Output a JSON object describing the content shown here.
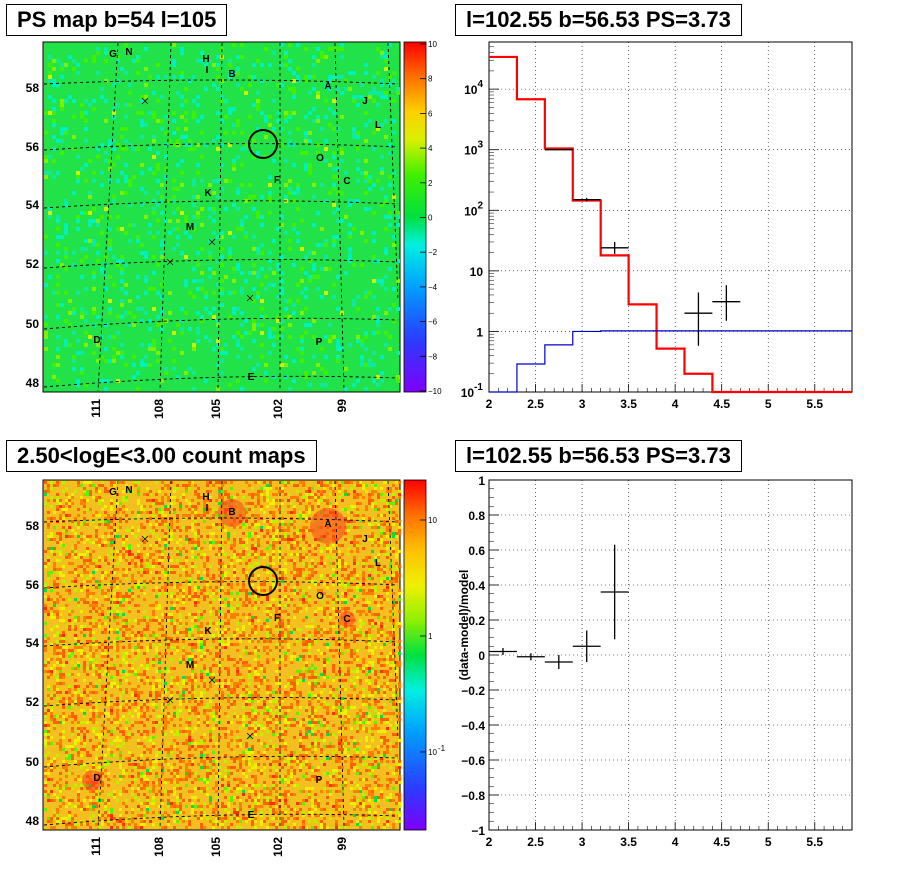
{
  "panels": {
    "ps_map_title": "PS map b=54 l=105",
    "spectrum_title": "l=102.55 b=56.53 PS=3.73",
    "count_map_title": "2.50<logE<3.00 count maps",
    "residual_title": "l=102.55 b=56.53 PS=3.73"
  },
  "maps": {
    "lat_ticks": [
      "58",
      "56",
      "54",
      "52",
      "50",
      "48"
    ],
    "lon_ticks": [
      "111",
      "108",
      "105",
      "102",
      "99"
    ],
    "source_labels": [
      "G",
      "N",
      "H",
      "I",
      "B",
      "A",
      "J",
      "L",
      "O",
      "C",
      "F",
      "K",
      "M",
      "D",
      "P",
      "E"
    ],
    "ps_colorbar_ticks": [
      "10",
      "8",
      "6",
      "4",
      "2",
      "0",
      "−2",
      "−4",
      "−6",
      "−8",
      "−10"
    ],
    "count_colorbar_ticks": [
      "10",
      "1",
      "10",
      "-1"
    ]
  },
  "chart_data": [
    {
      "type": "step",
      "title": "l=102.55 b=56.53 PS=3.73",
      "xlabel": "",
      "ylabel": "",
      "xlim": [
        2,
        5.9
      ],
      "ylim": [
        0.1,
        60000
      ],
      "yscale": "log",
      "x_ticks": [
        "2",
        "2.5",
        "3",
        "3.5",
        "4",
        "4.5",
        "5",
        "5.5"
      ],
      "y_ticks": [
        "10^4",
        "10^3",
        "10^2",
        "10",
        "1",
        "10^-1"
      ],
      "grid": true,
      "series": [
        {
          "color": "#ff0000",
          "bin_edges": [
            2.0,
            2.3,
            2.6,
            2.9,
            3.2,
            3.5,
            3.8,
            4.1,
            4.4,
            5.9
          ],
          "values": [
            34000,
            6800,
            1050,
            145,
            18,
            2.8,
            0.52,
            0.2,
            0.1
          ]
        },
        {
          "color": "#0000cc",
          "bin_edges": [
            2.0,
            2.3,
            2.6,
            2.9,
            3.2,
            5.9
          ],
          "values": [
            0.1,
            0.29,
            0.6,
            1.0,
            1.02
          ]
        }
      ],
      "points": [
        {
          "x": 2.75,
          "y": 1000,
          "xerr": 0.15,
          "ylo": 980,
          "yhi": 1020
        },
        {
          "x": 3.05,
          "y": 150,
          "xerr": 0.15,
          "ylo": 140,
          "yhi": 160
        },
        {
          "x": 3.35,
          "y": 24,
          "xerr": 0.15,
          "ylo": 19,
          "yhi": 30
        },
        {
          "x": 4.25,
          "y": 2.0,
          "xerr": 0.15,
          "ylo": 0.58,
          "yhi": 4.4
        },
        {
          "x": 4.55,
          "y": 3.1,
          "xerr": 0.15,
          "ylo": 1.5,
          "yhi": 5.8
        }
      ]
    },
    {
      "type": "scatter",
      "title": "l=102.55 b=56.53 PS=3.73",
      "xlabel": "",
      "ylabel": "(data-model)/model",
      "xlim": [
        2,
        5.9
      ],
      "ylim": [
        -1,
        1
      ],
      "x_ticks": [
        "2",
        "2.5",
        "3",
        "3.5",
        "4",
        "4.5",
        "5",
        "5.5"
      ],
      "y_ticks": [
        "1",
        "0.8",
        "0.6",
        "0.4",
        "0.2",
        "0",
        "−0.2",
        "−0.4",
        "−0.6",
        "−0.8",
        "−1"
      ],
      "grid": true,
      "points": [
        {
          "x": 2.15,
          "y": 0.02,
          "xerr": 0.15,
          "ylo": 0.0,
          "yhi": 0.04
        },
        {
          "x": 2.45,
          "y": -0.01,
          "xerr": 0.15,
          "ylo": -0.03,
          "yhi": 0.01
        },
        {
          "x": 2.75,
          "y": -0.04,
          "xerr": 0.15,
          "ylo": -0.08,
          "yhi": 0.0
        },
        {
          "x": 3.05,
          "y": 0.05,
          "xerr": 0.15,
          "ylo": -0.04,
          "yhi": 0.14
        },
        {
          "x": 3.35,
          "y": 0.36,
          "xerr": 0.15,
          "ylo": 0.09,
          "yhi": 0.63
        }
      ]
    }
  ]
}
